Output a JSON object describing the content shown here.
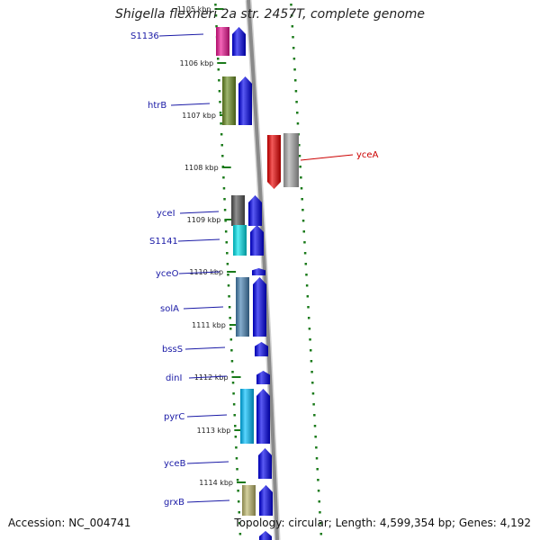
{
  "title": "Shigella flexneri 2a str. 2457T, complete genome",
  "footer": {
    "accession": "Accession: NC_004741",
    "summary": "Topology: circular; Length: 4,599,354 bp; Genes: 4,192"
  },
  "colors": {
    "backbone": "#8a8a8a",
    "forward_cds": "#0000ee",
    "tick": "#1a7a1a",
    "label_blue": "#1a1aa6",
    "label_red": "#cc0000"
  },
  "ruler": {
    "ticks": [
      "1105 kbp",
      "1106 kbp",
      "1107 kbp",
      "1108 kbp",
      "1109 kbp",
      "1110 kbp",
      "1111 kbp",
      "1112 kbp",
      "1113 kbp",
      "1114 kbp"
    ]
  },
  "genes": [
    {
      "name": "S1136",
      "strand": "+",
      "cog_color": "#ee1493"
    },
    {
      "name": "htrB",
      "strand": "+",
      "cog_color": "#6b8e23"
    },
    {
      "name": "yceA",
      "strand": "-",
      "cog_color": "#aaaaaa"
    },
    {
      "name": "yceI",
      "strand": "+",
      "cog_color": "#555555"
    },
    {
      "name": "S1141",
      "strand": "+",
      "cog_color": "#00e5ee"
    },
    {
      "name": "yceO",
      "strand": "+",
      "cog_color": ""
    },
    {
      "name": "solA",
      "strand": "+",
      "cog_color": "#4682b4"
    },
    {
      "name": "bssS",
      "strand": "+",
      "cog_color": ""
    },
    {
      "name": "dinI",
      "strand": "+",
      "cog_color": ""
    },
    {
      "name": "pyrC",
      "strand": "+",
      "cog_color": "#00bfff"
    },
    {
      "name": "yceB",
      "strand": "+",
      "cog_color": ""
    },
    {
      "name": "grxB",
      "strand": "+",
      "cog_color": "#bdb76b"
    }
  ]
}
